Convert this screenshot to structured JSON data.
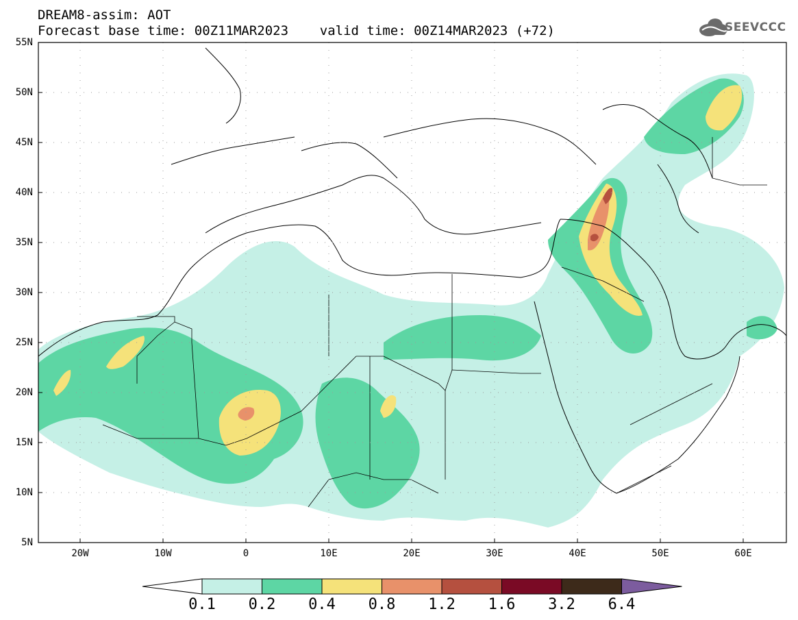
{
  "title": {
    "line1": "DREAM8-assim: AOT",
    "line2": "Forecast base time: 00Z11MAR2023    valid time: 00Z14MAR2023 (+72)"
  },
  "logo": {
    "text": "SEEVCCC",
    "icon": "cloud-icon"
  },
  "map": {
    "lat_labels": [
      "55N",
      "50N",
      "45N",
      "40N",
      "35N",
      "30N",
      "25N",
      "20N",
      "15N",
      "10N",
      "5N"
    ],
    "lon_labels": [
      "20W",
      "10W",
      "0",
      "10E",
      "20E",
      "30E",
      "40E",
      "50E",
      "60E"
    ],
    "extent": {
      "lon_min": -25,
      "lon_max": 65,
      "lat_min": 5,
      "lat_max": 55
    }
  },
  "legend": {
    "levels": [
      "0.1",
      "0.2",
      "0.4",
      "0.8",
      "1.2",
      "1.6",
      "3.2",
      "6.4"
    ],
    "colors": [
      "#ffffff",
      "#c5f0e6",
      "#5dd6a4",
      "#f5e27a",
      "#e8916a",
      "#b5503f",
      "#7a0a25",
      "#3d2a1a",
      "#7c5c9e"
    ]
  }
}
